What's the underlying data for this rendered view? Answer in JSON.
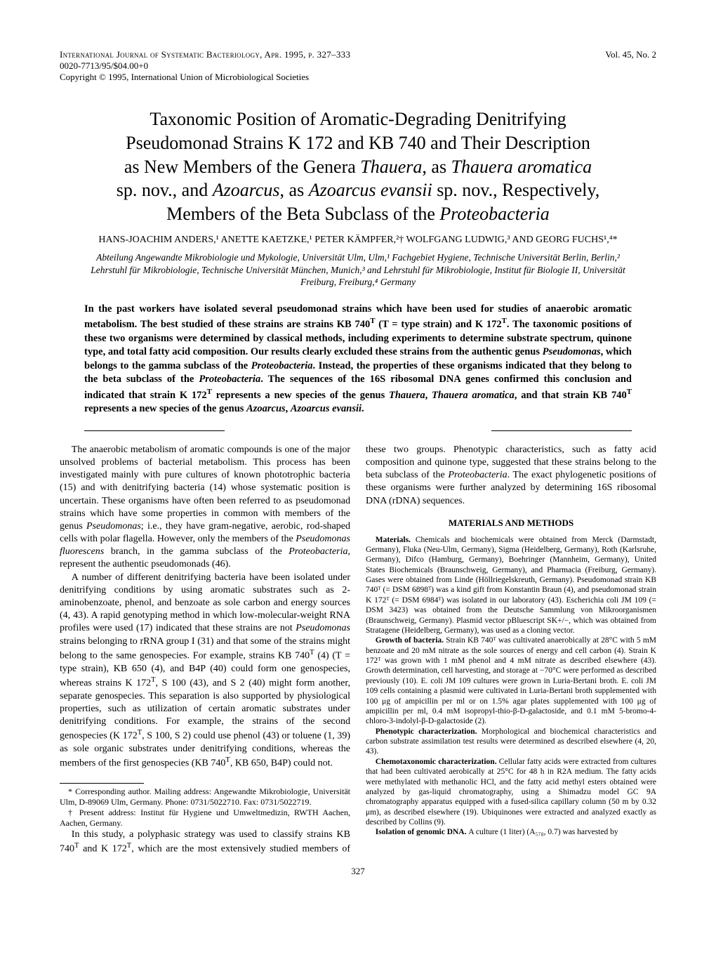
{
  "header": {
    "journal_line": "International Journal of Systematic Bacteriology, Apr. 1995, p. 327–333",
    "issn_line": "0020-7713/95/$04.00+0",
    "copyright_line": "Copyright © 1995, International Union of Microbiological Societies",
    "volume": "Vol. 45, No. 2"
  },
  "title": {
    "line1": "Taxonomic Position of Aromatic-Degrading Denitrifying",
    "line2_a": "Pseudomonad Strains K 172 and KB 740 and Their Description",
    "line3_a": "as New Members of the Genera ",
    "line3_b": "Thauera",
    "line3_c": ", as ",
    "line3_d": "Thauera aromatica",
    "line4_a": "sp. nov., and ",
    "line4_b": "Azoarcus",
    "line4_c": ", as ",
    "line4_d": "Azoarcus evansii",
    "line4_e": " sp. nov., Respectively,",
    "line5_a": "Members of the Beta Subclass of the ",
    "line5_b": "Proteobacteria"
  },
  "authors": "HANS-JOACHIM ANDERS,¹ ANETTE KAETZKE,¹ PETER KÄMPFER,²† WOLFGANG LUDWIG,³ AND GEORG FUCHS¹,⁴*",
  "affiliations": "Abteilung Angewandte Mikrobiologie und Mykologie, Universität Ulm, Ulm,¹ Fachgebiet Hygiene, Technische Universität Berlin, Berlin,² Lehrstuhl für Mikrobiologie, Technische Universität München, Munich,³ and Lehrstuhl für Mikrobiologie, Institut für Biologie II, Universität Freiburg, Freiburg,⁴ Germany",
  "abstract": {
    "p1a": "In the past workers have isolated several pseudomonad strains which have been used for studies of anaerobic aromatic metabolism. The best studied of these strains are strains KB 740",
    "p1b": " (T = type strain) and K 172",
    "p1c": ". The taxonomic positions of these two organisms were determined by classical methods, including experiments to determine substrate spectrum, quinone type, and total fatty acid composition. Our results clearly excluded these strains from the authentic genus ",
    "p1d": "Pseudomonas",
    "p1e": ", which belongs to the gamma subclass of the ",
    "p1f": "Proteobacteria",
    "p1g": ". Instead, the properties of these organisms indicated that they belong to the beta subclass of the ",
    "p1h": "Proteobacteria",
    "p1i": ". The sequences of the 16S ribosomal DNA genes confirmed this conclusion and indicated that strain K 172",
    "p1j": " represents a new species of the genus ",
    "p1k": "Thauera",
    "p1l": ", ",
    "p1m": "Thauera aromatica",
    "p1n": ", and that strain KB 740",
    "p1o": " represents a new species of the genus ",
    "p1p": "Azoarcus",
    "p1q": ", ",
    "p1r": "Azoarcus evansii",
    "p1s": "."
  },
  "body": {
    "p1a": "The anaerobic metabolism of aromatic compounds is one of the major unsolved problems of bacterial metabolism. This process has been investigated mainly with pure cultures of known phototrophic bacteria (15) and with denitrifying bacteria (14) whose systematic position is uncertain. These organisms have often been referred to as pseudomonad strains which have some properties in common with members of the genus ",
    "p1b": "Pseudomonas",
    "p1c": "; i.e., they have gram-negative, aerobic, rod-shaped cells with polar flagella. However, only the members of the ",
    "p1d": "Pseudomonas fluorescens",
    "p1e": " branch, in the gamma subclass of the ",
    "p1f": "Proteobacteria",
    "p1g": ", represent the authentic pseudomonads (46).",
    "p2a": "A number of different denitrifying bacteria have been isolated under denitrifying conditions by using aromatic substrates such as 2-aminobenzoate, phenol, and benzoate as sole carbon and energy sources (4, 43). A rapid genotyping method in which low-molecular-weight RNA profiles were used (17) indicated that these strains are not ",
    "p2b": "Pseudomonas",
    "p2c": " strains belonging to rRNA group I (31) and that some of the strains might belong to the same genospecies. For example, strains KB 740",
    "p2d": " (4) (T = type strain), KB 650 (4), and B4P (40) could form one genospecies, whereas strains K 172",
    "p2e": ", S 100 (43), and S 2 (40) might form another, separate genospecies. This separation is also supported by physiological properties, such as utilization of certain aromatic substrates under denitrifying conditions. For example, the strains of the second genospecies (K 172",
    "p2f": ", S 100, S 2) could use phenol (43) or toluene (1, 39) as sole organic substrates under denitrifying conditions, whereas the members of the first genospecies (KB 740",
    "p2g": ", KB 650, B4P) could not.",
    "p3a": "In this study, a polyphasic strategy was used to classify strains KB 740",
    "p3b": " and K 172",
    "p3c": ", which are the most extensively studied members of these two groups. Phenotypic characteristics, such as fatty acid composition and quinone type, suggested that these strains belong to the beta subclass of the ",
    "p3d": "Proteobacteria",
    "p3e": ". The exact phylogenetic positions of these organisms were further analyzed by determining 16S ribosomal DNA (rDNA) sequences.",
    "mm_head": "MATERIALS AND METHODS",
    "mm1_lead": "Materials. ",
    "mm1": "Chemicals and biochemicals were obtained from Merck (Darmstadt, Germany), Fluka (Neu-Ulm, Germany), Sigma (Heidelberg, Germany), Roth (Karlsruhe, Germany), Difco (Hamburg, Germany), Boehringer (Mannheim, Germany), United States Biochemicals (Braunschweig, Germany), and Pharmacia (Freiburg, Germany). Gases were obtained from Linde (Höllriegelskreuth, Germany). Pseudomonad strain KB 740ᵀ (= DSM 6898ᵀ) was a kind gift from Konstantin Braun (4), and pseudomonad strain K 172ᵀ (= DSM 6984ᵀ) was isolated in our laboratory (43). Escherichia coli JM 109 (= DSM 3423) was obtained from the Deutsche Sammlung von Mikroorganismen (Braunschweig, Germany). Plasmid vector pBluescript SK+/−, which was obtained from Stratagene (Heidelberg, Germany), was used as a cloning vector.",
    "mm2_lead": "Growth of bacteria. ",
    "mm2": "Strain KB 740ᵀ was cultivated anaerobically at 28°C with 5 mM benzoate and 20 mM nitrate as the sole sources of energy and cell carbon (4). Strain K 172ᵀ was grown with 1 mM phenol and 4 mM nitrate as described elsewhere (43). Growth determination, cell harvesting, and storage at −70°C were performed as described previously (10). E. coli JM 109 cultures were grown in Luria-Bertani broth. E. coli JM 109 cells containing a plasmid were cultivated in Luria-Bertani broth supplemented with 100 μg of ampicillin per ml or on 1.5% agar plates supplemented with 100 μg of ampicillin per ml, 0.4 mM isopropyl-thio-β-D-galactoside, and 0.1 mM 5-bromo-4-chloro-3-indolyl-β-D-galactoside (2).",
    "mm3_lead": "Phenotypic characterization. ",
    "mm3": "Morphological and biochemical characteristics and carbon substrate assimilation test results were determined as described elsewhere (4, 20, 43).",
    "mm4_lead": "Chemotaxonomic characterization. ",
    "mm4": "Cellular fatty acids were extracted from cultures that had been cultivated aerobically at 25°C for 48 h in R2A medium. The fatty acids were methylated with methanolic HCl, and the fatty acid methyl esters obtained were analyzed by gas-liquid chromatography, using a Shimadzu model GC 9A chromatography apparatus equipped with a fused-silica capillary column (50 m by 0.32 μm), as described elsewhere (19). Ubiquinones were extracted and analyzed exactly as described by Collins (9).",
    "mm5_lead": "Isolation of genomic DNA. ",
    "mm5": "A culture (1 liter) (A₅₇₈, 0.7) was harvested by"
  },
  "footnotes": {
    "f1": "* Corresponding author. Mailing address: Angewandte Mikrobiologie, Universität Ulm, D-89069 Ulm, Germany. Phone: 0731/5022710. Fax: 0731/5022719.",
    "f2": "† Present address: Institut für Hygiene und Umweltmedizin, RWTH Aachen, Aachen, Germany."
  },
  "pagenum": "327"
}
